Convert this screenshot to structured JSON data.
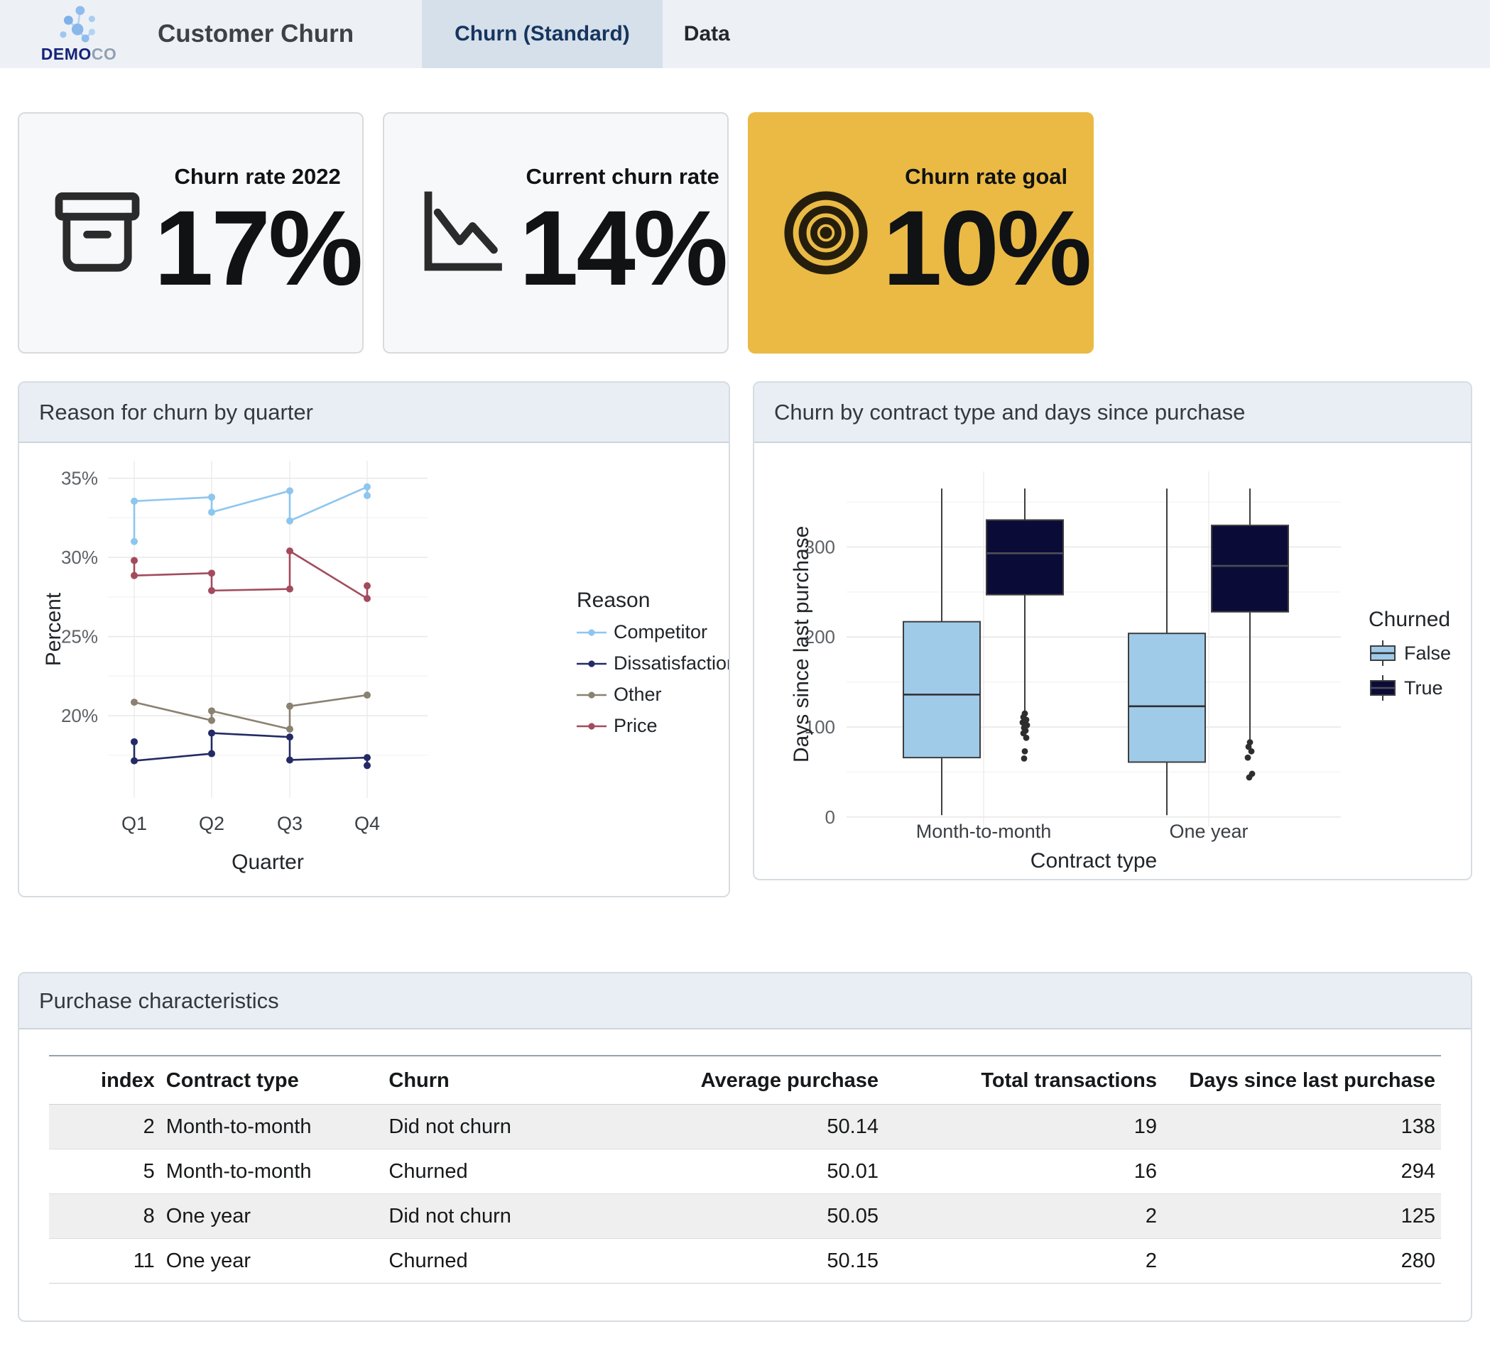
{
  "header": {
    "brand_bold": "DEMO",
    "brand_light": "CO",
    "title": "Customer Churn",
    "tabs": [
      {
        "label": "Churn (Standard)",
        "active": true
      },
      {
        "label": "Data",
        "active": false
      }
    ]
  },
  "kpis": [
    {
      "label": "Churn rate 2022",
      "value": "17%",
      "icon": "archive-box-icon",
      "highlight": false
    },
    {
      "label": "Current churn rate",
      "value": "14%",
      "icon": "declining-line-chart-icon",
      "highlight": false
    },
    {
      "label": "Churn rate goal",
      "value": "10%",
      "icon": "target-icon",
      "highlight": true
    }
  ],
  "colors": {
    "highlight_card": "#eaba45",
    "competitor": "#8dc6ef",
    "dissatisfaction": "#242a66",
    "other": "#8b8171",
    "price": "#a34b5d",
    "box_false": "#9fcbe9",
    "box_true": "#0b0b38"
  },
  "panels": {
    "line": {
      "title": "Reason for churn by quarter"
    },
    "box": {
      "title": "Churn by contract type and days since purchase"
    },
    "table": {
      "title": "Purchase characteristics"
    }
  },
  "chart_data": [
    {
      "type": "line",
      "title": "Reason for churn by quarter",
      "xlabel": "Quarter",
      "ylabel": "Percent",
      "x_categories": [
        "Q1",
        "Q2",
        "Q3",
        "Q4"
      ],
      "y_ticks": [
        20,
        25,
        30,
        35
      ],
      "y_tick_suffix": "%",
      "ylim": [
        14.8,
        36.1
      ],
      "grid": true,
      "legend_title": "Reason",
      "legend_position": "right",
      "series": [
        {
          "name": "Competitor",
          "color": "#8dc6ef",
          "points": [
            [
              1,
              31.0
            ],
            [
              1,
              33.55
            ],
            [
              2,
              33.8
            ],
            [
              2,
              32.85
            ],
            [
              3,
              34.2
            ],
            [
              3,
              32.3
            ],
            [
              4,
              34.45
            ],
            [
              4,
              33.9
            ]
          ]
        },
        {
          "name": "Dissatisfaction",
          "color": "#242a66",
          "points": [
            [
              1,
              18.35
            ],
            [
              1,
              17.15
            ],
            [
              2,
              17.6
            ],
            [
              2,
              18.9
            ],
            [
              3,
              18.65
            ],
            [
              3,
              17.2
            ],
            [
              4,
              17.35
            ],
            [
              4,
              16.85
            ]
          ]
        },
        {
          "name": "Other",
          "color": "#8b8171",
          "points": [
            [
              1,
              20.85
            ],
            [
              2,
              19.7
            ],
            [
              2,
              20.3
            ],
            [
              3,
              19.15
            ],
            [
              3,
              20.6
            ],
            [
              4,
              21.3
            ]
          ]
        },
        {
          "name": "Price",
          "color": "#a34b5d",
          "points": [
            [
              1,
              29.8
            ],
            [
              1,
              28.85
            ],
            [
              2,
              29.0
            ],
            [
              2,
              27.9
            ],
            [
              3,
              28.0
            ],
            [
              3,
              30.4
            ],
            [
              4,
              27.4
            ],
            [
              4,
              28.2
            ]
          ]
        }
      ]
    },
    {
      "type": "boxplot",
      "title": "Churn by contract type and days since purchase",
      "xlabel": "Contract type",
      "ylabel": "Days since last purchase",
      "x_categories": [
        "Month-to-month",
        "One year"
      ],
      "y_ticks": [
        0,
        100,
        200,
        300
      ],
      "ylim": [
        -27,
        384
      ],
      "grid": true,
      "legend_title": "Churned",
      "legend_position": "right",
      "groups": [
        {
          "name": "False",
          "color": "#9fcbe9"
        },
        {
          "name": "True",
          "color": "#0b0b38"
        }
      ],
      "boxes": [
        {
          "category": "Month-to-month",
          "group": "False",
          "low": 2,
          "q1": 66,
          "median": 136,
          "q3": 217,
          "high": 365,
          "outliers": []
        },
        {
          "category": "Month-to-month",
          "group": "True",
          "low": 117,
          "q1": 247,
          "median": 293,
          "q3": 330,
          "high": 365,
          "outliers": [
            115,
            111,
            108,
            105,
            102,
            99,
            96,
            93,
            88,
            73,
            65
          ]
        },
        {
          "category": "One year",
          "group": "False",
          "low": 2,
          "q1": 61,
          "median": 123,
          "q3": 204,
          "high": 365,
          "outliers": []
        },
        {
          "category": "One year",
          "group": "True",
          "low": 84,
          "q1": 228,
          "median": 279,
          "q3": 324,
          "high": 365,
          "outliers": [
            83,
            78,
            73,
            66,
            48,
            44
          ]
        }
      ]
    }
  ],
  "table": {
    "columns": [
      {
        "label": "index",
        "align": "right",
        "width": "8%"
      },
      {
        "label": "Contract type",
        "align": "left",
        "width": "16%"
      },
      {
        "label": "Churn",
        "align": "left",
        "width": "19%"
      },
      {
        "label": "Average purchase",
        "align": "right",
        "width": "17%"
      },
      {
        "label": "Total transactions",
        "align": "right",
        "width": "20%"
      },
      {
        "label": "Days since last purchase",
        "align": "right",
        "width": "20%"
      }
    ],
    "rows": [
      [
        "2",
        "Month-to-month",
        "Did not churn",
        "50.14",
        "19",
        "138"
      ],
      [
        "5",
        "Month-to-month",
        "Churned",
        "50.01",
        "16",
        "294"
      ],
      [
        "8",
        "One year",
        "Did not churn",
        "50.05",
        "2",
        "125"
      ],
      [
        "11",
        "One year",
        "Churned",
        "50.15",
        "2",
        "280"
      ]
    ]
  }
}
